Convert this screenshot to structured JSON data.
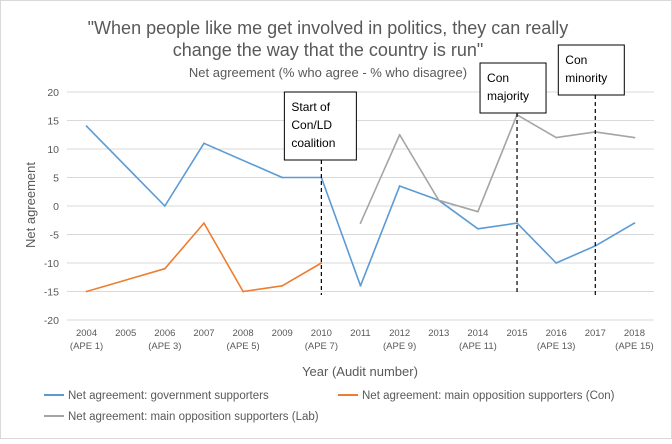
{
  "chart_data": {
    "type": "line",
    "title": "\"When people like me get involved in politics, they can really change the way that the country is run\"",
    "title_lines": [
      "\"When people like me get involved in politics, they can really",
      "change the way that the country is run\""
    ],
    "subtitle": "Net agreement (% who agree - % who disagree)",
    "xlabel": "Year (Audit number)",
    "ylabel": "Net agreement",
    "ylim": [
      -20,
      20
    ],
    "yticks": [
      -20,
      -15,
      -10,
      -5,
      0,
      5,
      10,
      15,
      20
    ],
    "grid": true,
    "categories": [
      "2004",
      "2005",
      "2006",
      "2007",
      "2008",
      "2009",
      "2010",
      "2011",
      "2012",
      "2013",
      "2014",
      "2015",
      "2016",
      "2017",
      "2018"
    ],
    "category_sublabels": [
      "(APE 1)",
      "",
      "(APE 3)",
      "",
      "(APE 5)",
      "",
      "(APE 7)",
      "",
      "(APE 9)",
      "",
      "(APE 11)",
      "",
      "(APE 13)",
      "",
      "(APE 15)"
    ],
    "series": [
      {
        "name": "Net agreement: government supporters",
        "color": "#5b9bd5",
        "values": [
          14,
          null,
          0,
          11,
          null,
          5,
          5,
          -14,
          3.5,
          1,
          -4,
          -3,
          -10,
          -7,
          -3
        ]
      },
      {
        "name": "Net agreement: main opposition supporters (Con)",
        "color": "#ed7d31",
        "values": [
          -15,
          null,
          -11,
          -3,
          -15,
          -14,
          -10,
          null,
          null,
          null,
          null,
          null,
          null,
          null,
          null
        ]
      },
      {
        "name": "Net agreement: main opposition supporters (Lab)",
        "color": "#a5a5a5",
        "values": [
          null,
          null,
          null,
          null,
          null,
          null,
          null,
          -3,
          12.5,
          1,
          -1,
          16,
          12,
          13,
          12
        ]
      }
    ],
    "legend_position": "bottom",
    "annotations": [
      {
        "x": "2010",
        "lines": [
          "Start of",
          "Con/LD",
          "coalition"
        ]
      },
      {
        "x": "2015",
        "lines": [
          "Con",
          "majority"
        ]
      },
      {
        "x": "2017",
        "lines": [
          "Con",
          "minority"
        ]
      }
    ]
  }
}
